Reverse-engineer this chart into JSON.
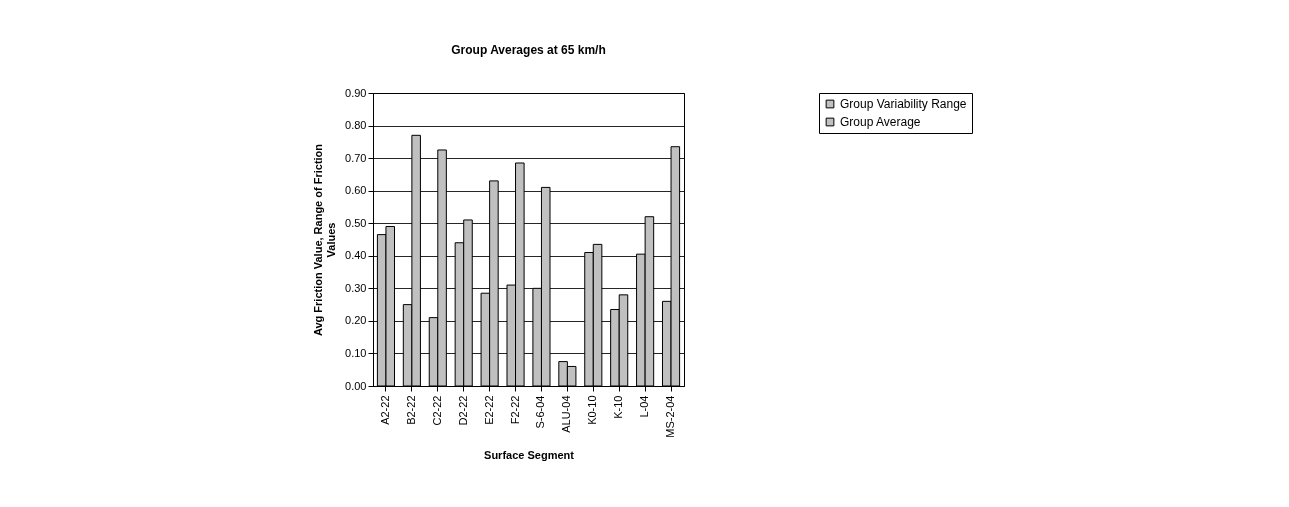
{
  "chart_data": {
    "type": "bar",
    "title": "Group Averages at 65 km/h",
    "xlabel": "Surface Segment",
    "ylabel": "Avg Friction Value, Range of Friction Values",
    "categories": [
      "A2-22",
      "B2-22",
      "C2-22",
      "D2-22",
      "E2-22",
      "F2-22",
      "S-6-04",
      "ALU-04",
      "K0-10",
      "K-10",
      "L-04",
      "MS-2-04"
    ],
    "series": [
      {
        "name": "Group Variability Range",
        "color": "#c0c0c0",
        "values": [
          0.465,
          0.25,
          0.21,
          0.44,
          0.285,
          0.31,
          0.3,
          0.075,
          0.41,
          0.235,
          0.405,
          0.26
        ]
      },
      {
        "name": "Group Average",
        "color": "#c0c0c0",
        "values": [
          0.49,
          0.77,
          0.725,
          0.51,
          0.63,
          0.685,
          0.61,
          0.06,
          0.435,
          0.28,
          0.52,
          0.735
        ]
      }
    ],
    "ylim": [
      0,
      0.9
    ],
    "yticks": [
      {
        "value": 0,
        "label": "0.00"
      },
      {
        "value": 0.1,
        "label": "0.10"
      },
      {
        "value": 0.2,
        "label": "0.20"
      },
      {
        "value": 0.3,
        "label": "0.30"
      },
      {
        "value": 0.4,
        "label": "0.40"
      },
      {
        "value": 0.5,
        "label": "0.50"
      },
      {
        "value": 0.6,
        "label": "0.60"
      },
      {
        "value": 0.7,
        "label": "0.70"
      },
      {
        "value": 0.8,
        "label": "0.80"
      },
      {
        "value": 0.9,
        "label": "0.90"
      }
    ],
    "grid": "y",
    "legend": "right"
  }
}
